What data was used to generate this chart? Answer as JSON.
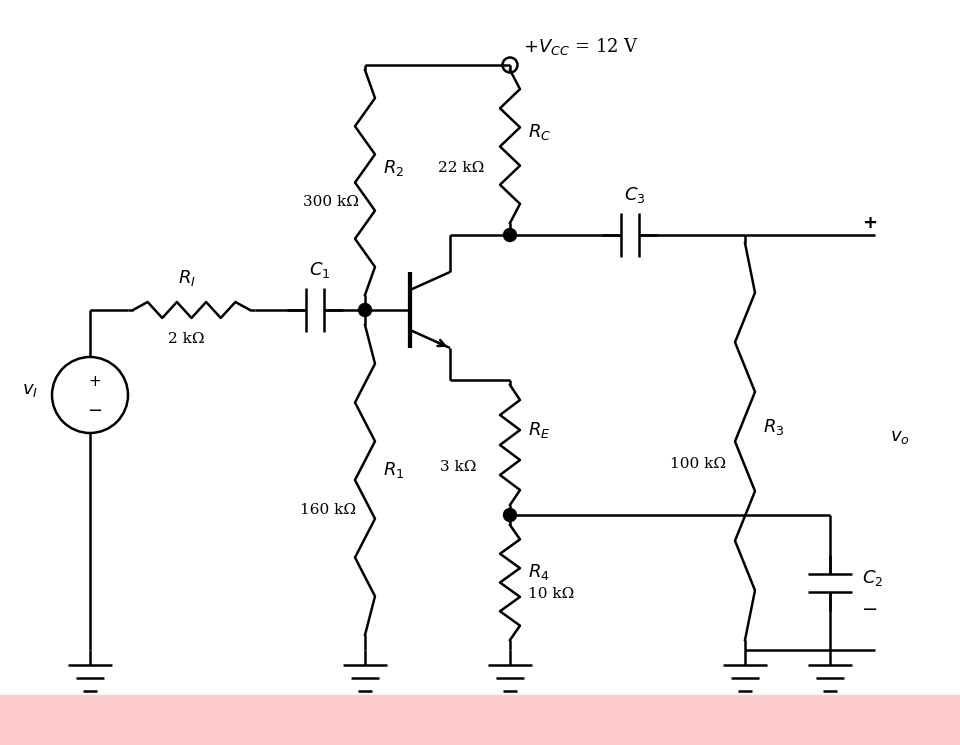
{
  "bg_color": "#ffffff",
  "line_color": "#000000",
  "line_width": 1.8,
  "labels": {
    "R1_name": "$R_1$",
    "R1_val": "160 kΩ",
    "R2_name": "$R_2$",
    "R2_val": "300 kΩ",
    "RC_name": "$R_C$",
    "RC_val": "22 kΩ",
    "RE_name": "$R_E$",
    "RE_val": "3 kΩ",
    "R3_name": "$R_3$",
    "R3_val": "100 kΩ",
    "R4_name": "$R_4$",
    "R4_val": "10 kΩ",
    "RI_name": "$R_I$",
    "RI_val": "2 kΩ",
    "C1_name": "$C_1$",
    "C2_name": "$C_2$",
    "C3_name": "$C_3$",
    "VCC": "$+V_{CC}$ = 12 V",
    "vI": "$v_I$",
    "vO": "$v_o$"
  }
}
